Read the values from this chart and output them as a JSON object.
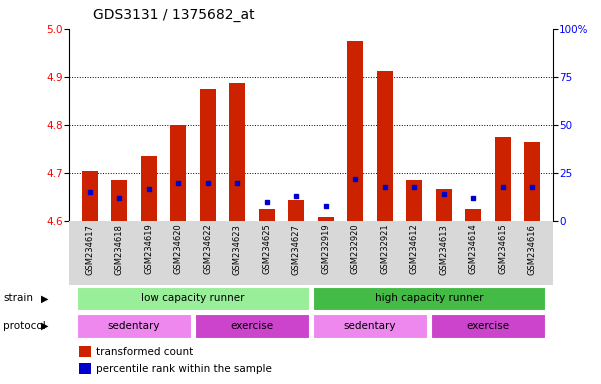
{
  "title": "GDS3131 / 1375682_at",
  "samples": [
    "GSM234617",
    "GSM234618",
    "GSM234619",
    "GSM234620",
    "GSM234622",
    "GSM234623",
    "GSM234625",
    "GSM234627",
    "GSM232919",
    "GSM232920",
    "GSM232921",
    "GSM234612",
    "GSM234613",
    "GSM234614",
    "GSM234615",
    "GSM234616"
  ],
  "red_values": [
    4.705,
    4.685,
    4.735,
    4.8,
    4.875,
    4.887,
    4.625,
    4.645,
    4.608,
    4.975,
    4.912,
    4.685,
    4.668,
    4.625,
    4.775,
    4.765
  ],
  "blue_values": [
    15,
    12,
    17,
    20,
    20,
    20,
    10,
    13,
    8,
    22,
    18,
    18,
    14,
    12,
    18,
    18
  ],
  "ymin": 4.6,
  "ymax": 5.0,
  "y2min": 0,
  "y2max": 100,
  "yticks": [
    4.6,
    4.7,
    4.8,
    4.9,
    5.0
  ],
  "y2ticks": [
    0,
    25,
    50,
    75,
    100
  ],
  "y2ticklabels": [
    "0",
    "25",
    "50",
    "75",
    "100%"
  ],
  "bar_color": "#cc2200",
  "blue_color": "#0000cc",
  "strain_groups": [
    {
      "label": "low capacity runner",
      "start": 0,
      "end": 8,
      "color": "#99ee99"
    },
    {
      "label": "high capacity runner",
      "start": 8,
      "end": 16,
      "color": "#44bb44"
    }
  ],
  "protocol_groups": [
    {
      "label": "sedentary",
      "start": 0,
      "end": 4,
      "color": "#ee88ee"
    },
    {
      "label": "exercise",
      "start": 4,
      "end": 8,
      "color": "#cc44cc"
    },
    {
      "label": "sedentary",
      "start": 8,
      "end": 12,
      "color": "#ee88ee"
    },
    {
      "label": "exercise",
      "start": 12,
      "end": 16,
      "color": "#cc44cc"
    }
  ],
  "legend_items": [
    {
      "label": "transformed count",
      "color": "#cc2200"
    },
    {
      "label": "percentile rank within the sample",
      "color": "#0000cc"
    }
  ],
  "bar_width": 0.55,
  "tick_fontsize": 7.5,
  "title_fontsize": 10,
  "sample_fontsize": 6,
  "annot_fontsize": 7.5,
  "legend_fontsize": 7.5
}
